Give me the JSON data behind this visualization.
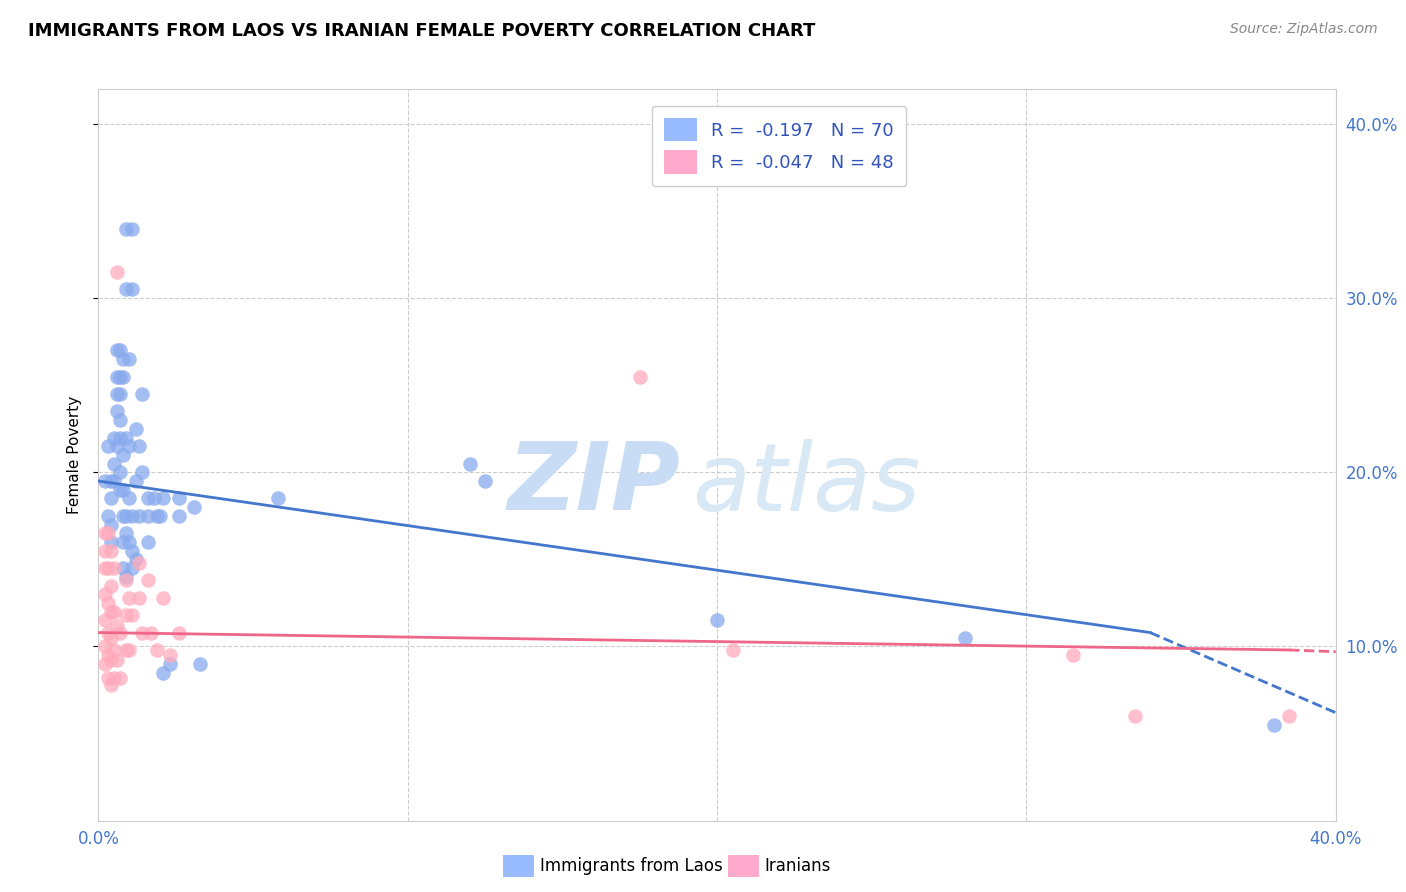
{
  "title": "IMMIGRANTS FROM LAOS VS IRANIAN FEMALE POVERTY CORRELATION CHART",
  "source": "Source: ZipAtlas.com",
  "ylabel": "Female Poverty",
  "xlim": [
    0,
    0.4
  ],
  "ylim": [
    0,
    0.42
  ],
  "yticks": [
    0.1,
    0.2,
    0.3,
    0.4
  ],
  "xticks": [
    0.0,
    0.1,
    0.2,
    0.3,
    0.4
  ],
  "legend_entries": [
    {
      "label": "Immigrants from Laos",
      "R": "-0.197",
      "N": "70",
      "color": "#99bbff"
    },
    {
      "label": "Iranians",
      "R": "-0.047",
      "N": "48",
      "color": "#ffaacc"
    }
  ],
  "blue_scatter_color": "#88aaee",
  "pink_scatter_color": "#ffaabb",
  "blue_line_color": "#4477cc",
  "pink_line_color": "#ee6688",
  "watermark_color": "#ddeeff",
  "laos_points": [
    [
      0.002,
      0.195
    ],
    [
      0.003,
      0.215
    ],
    [
      0.003,
      0.175
    ],
    [
      0.004,
      0.195
    ],
    [
      0.004,
      0.185
    ],
    [
      0.004,
      0.17
    ],
    [
      0.004,
      0.16
    ],
    [
      0.005,
      0.22
    ],
    [
      0.005,
      0.205
    ],
    [
      0.005,
      0.195
    ],
    [
      0.006,
      0.27
    ],
    [
      0.006,
      0.255
    ],
    [
      0.006,
      0.245
    ],
    [
      0.006,
      0.235
    ],
    [
      0.006,
      0.215
    ],
    [
      0.007,
      0.27
    ],
    [
      0.007,
      0.255
    ],
    [
      0.007,
      0.245
    ],
    [
      0.007,
      0.23
    ],
    [
      0.007,
      0.22
    ],
    [
      0.007,
      0.2
    ],
    [
      0.007,
      0.19
    ],
    [
      0.008,
      0.265
    ],
    [
      0.008,
      0.255
    ],
    [
      0.008,
      0.21
    ],
    [
      0.008,
      0.19
    ],
    [
      0.008,
      0.175
    ],
    [
      0.008,
      0.16
    ],
    [
      0.008,
      0.145
    ],
    [
      0.009,
      0.34
    ],
    [
      0.009,
      0.305
    ],
    [
      0.009,
      0.22
    ],
    [
      0.009,
      0.175
    ],
    [
      0.009,
      0.165
    ],
    [
      0.009,
      0.14
    ],
    [
      0.01,
      0.265
    ],
    [
      0.01,
      0.215
    ],
    [
      0.01,
      0.185
    ],
    [
      0.01,
      0.16
    ],
    [
      0.011,
      0.34
    ],
    [
      0.011,
      0.305
    ],
    [
      0.011,
      0.175
    ],
    [
      0.011,
      0.155
    ],
    [
      0.011,
      0.145
    ],
    [
      0.012,
      0.225
    ],
    [
      0.012,
      0.195
    ],
    [
      0.012,
      0.15
    ],
    [
      0.013,
      0.215
    ],
    [
      0.013,
      0.175
    ],
    [
      0.014,
      0.245
    ],
    [
      0.014,
      0.2
    ],
    [
      0.016,
      0.185
    ],
    [
      0.016,
      0.175
    ],
    [
      0.016,
      0.16
    ],
    [
      0.018,
      0.185
    ],
    [
      0.019,
      0.175
    ],
    [
      0.02,
      0.175
    ],
    [
      0.021,
      0.185
    ],
    [
      0.021,
      0.085
    ],
    [
      0.023,
      0.09
    ],
    [
      0.026,
      0.185
    ],
    [
      0.026,
      0.175
    ],
    [
      0.031,
      0.18
    ],
    [
      0.033,
      0.09
    ],
    [
      0.058,
      0.185
    ],
    [
      0.12,
      0.205
    ],
    [
      0.125,
      0.195
    ],
    [
      0.2,
      0.115
    ],
    [
      0.28,
      0.105
    ],
    [
      0.38,
      0.055
    ]
  ],
  "iranian_points": [
    [
      0.002,
      0.165
    ],
    [
      0.002,
      0.155
    ],
    [
      0.002,
      0.145
    ],
    [
      0.002,
      0.13
    ],
    [
      0.002,
      0.115
    ],
    [
      0.002,
      0.1
    ],
    [
      0.002,
      0.09
    ],
    [
      0.003,
      0.165
    ],
    [
      0.003,
      0.145
    ],
    [
      0.003,
      0.125
    ],
    [
      0.003,
      0.108
    ],
    [
      0.003,
      0.095
    ],
    [
      0.003,
      0.082
    ],
    [
      0.004,
      0.155
    ],
    [
      0.004,
      0.135
    ],
    [
      0.004,
      0.12
    ],
    [
      0.004,
      0.105
    ],
    [
      0.004,
      0.092
    ],
    [
      0.004,
      0.078
    ],
    [
      0.005,
      0.145
    ],
    [
      0.005,
      0.12
    ],
    [
      0.005,
      0.098
    ],
    [
      0.005,
      0.082
    ],
    [
      0.006,
      0.315
    ],
    [
      0.006,
      0.112
    ],
    [
      0.006,
      0.092
    ],
    [
      0.007,
      0.108
    ],
    [
      0.007,
      0.082
    ],
    [
      0.009,
      0.138
    ],
    [
      0.009,
      0.118
    ],
    [
      0.009,
      0.098
    ],
    [
      0.01,
      0.128
    ],
    [
      0.01,
      0.098
    ],
    [
      0.011,
      0.118
    ],
    [
      0.013,
      0.148
    ],
    [
      0.013,
      0.128
    ],
    [
      0.014,
      0.108
    ],
    [
      0.016,
      0.138
    ],
    [
      0.017,
      0.108
    ],
    [
      0.019,
      0.098
    ],
    [
      0.021,
      0.128
    ],
    [
      0.023,
      0.095
    ],
    [
      0.026,
      0.108
    ],
    [
      0.175,
      0.255
    ],
    [
      0.205,
      0.098
    ],
    [
      0.315,
      0.095
    ],
    [
      0.335,
      0.06
    ],
    [
      0.385,
      0.06
    ]
  ],
  "blue_line_solid": {
    "x0": 0.0,
    "y0": 0.195,
    "x1": 0.34,
    "y1": 0.108
  },
  "blue_line_dash": {
    "x0": 0.34,
    "y0": 0.108,
    "x1": 0.4,
    "y1": 0.062
  },
  "pink_line_solid": {
    "x0": 0.0,
    "y0": 0.108,
    "x1": 0.385,
    "y1": 0.098
  },
  "pink_line_dash": {
    "x0": 0.385,
    "y0": 0.098,
    "x1": 0.4,
    "y1": 0.097
  }
}
